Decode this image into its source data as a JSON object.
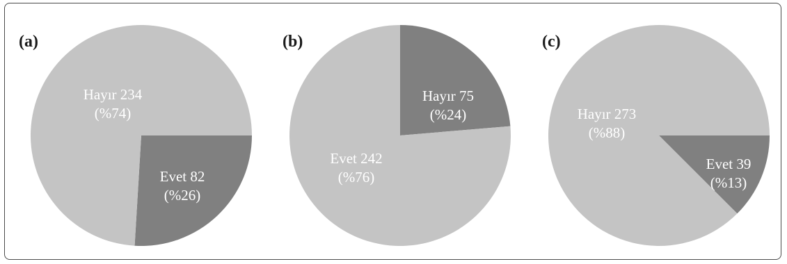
{
  "chart_data": [
    {
      "type": "pie",
      "panel_label": "(a)",
      "slices": [
        {
          "name": "Hayır",
          "value": 234,
          "percent_label": "(%74)",
          "label": "Hayır 234",
          "color": "#c4c4c4"
        },
        {
          "name": "Evet",
          "value": 82,
          "percent_label": "(%26)",
          "label": "Evet 82",
          "color": "#808080"
        }
      ]
    },
    {
      "type": "pie",
      "panel_label": "(b)",
      "slices": [
        {
          "name": "Hayır",
          "value": 75,
          "percent_label": "(%24)",
          "label": "Hayır 75",
          "color": "#808080"
        },
        {
          "name": "Evet",
          "value": 242,
          "percent_label": "(%76)",
          "label": "Evet 242",
          "color": "#c4c4c4"
        }
      ]
    },
    {
      "type": "pie",
      "panel_label": "(c)",
      "slices": [
        {
          "name": "Hayır",
          "value": 273,
          "percent_label": "(%88)",
          "label": "Hayır 273",
          "color": "#c4c4c4"
        },
        {
          "name": "Evet",
          "value": 39,
          "percent_label": "(%13)",
          "label": "Evet 39",
          "color": "#808080"
        }
      ]
    }
  ]
}
